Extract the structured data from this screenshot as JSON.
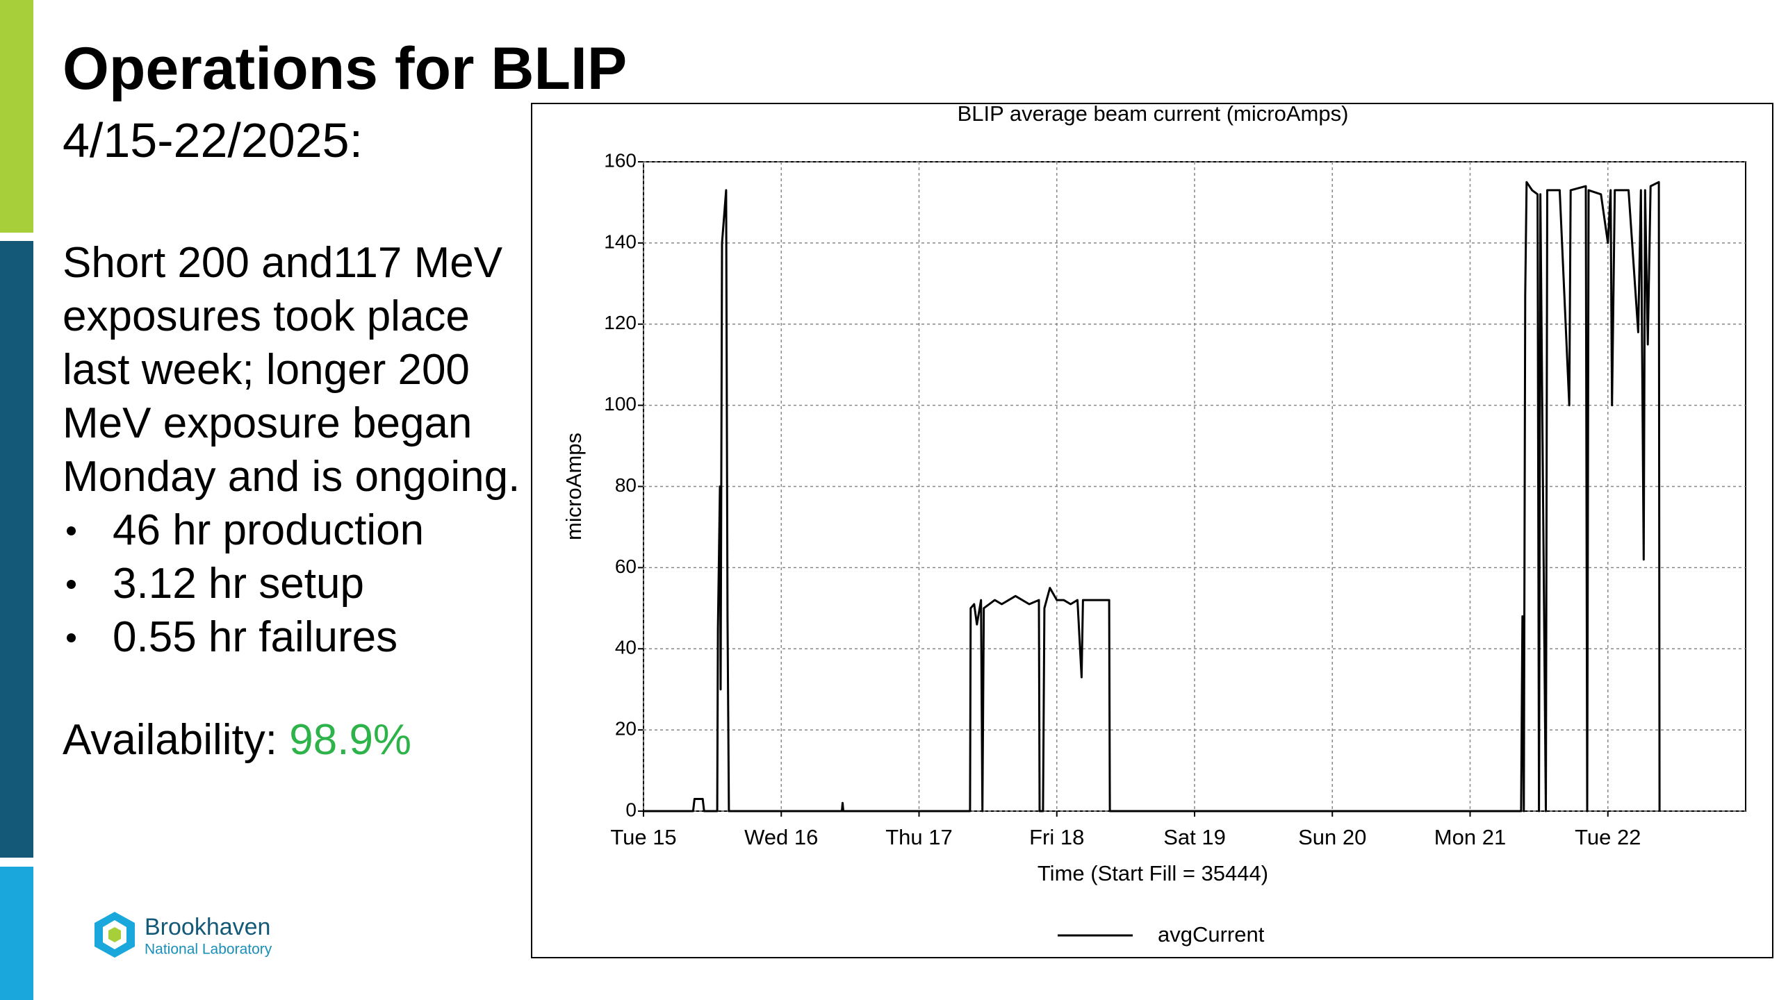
{
  "slide": {
    "title": "Operations for BLIP",
    "subtitle": "4/15-22/2025:",
    "paragraph": [
      "Short 200 and117 MeV",
      "exposures took place",
      "last week; longer 200",
      "MeV exposure began",
      "Monday and is ongoing."
    ],
    "bullets": [
      "46 hr production",
      "3.12 hr setup",
      "0.55 hr failures"
    ],
    "availability": {
      "label": "Availability:",
      "value": "98.9%"
    },
    "logo": {
      "name": "Brookhaven",
      "sub": "National Laboratory"
    }
  },
  "chart_data": {
    "type": "line",
    "title": "BLIP average beam current (microAmps)",
    "y_label": "microAmps",
    "x_label": "Time (Start Fill = 35444)",
    "xlim": [
      0,
      8
    ],
    "xticks": [
      {
        "value": 0,
        "label": "Tue 15"
      },
      {
        "value": 1,
        "label": "Wed 16"
      },
      {
        "value": 2,
        "label": "Thu 17"
      },
      {
        "value": 3,
        "label": "Fri 18"
      },
      {
        "value": 4,
        "label": "Sat 19"
      },
      {
        "value": 5,
        "label": "Sun 20"
      },
      {
        "value": 6,
        "label": "Mon 21"
      },
      {
        "value": 7,
        "label": "Tue 22"
      }
    ],
    "ylim": [
      0,
      160
    ],
    "yticks": [
      0,
      20,
      40,
      60,
      80,
      100,
      120,
      140,
      160
    ],
    "grid": true,
    "x": [
      0,
      0.36,
      0.37,
      0.43,
      0.44,
      0.535,
      0.54,
      0.555,
      0.56,
      0.57,
      0.6,
      0.61,
      0.62,
      1.44,
      1.445,
      1.45,
      2.37,
      2.375,
      2.4,
      2.42,
      2.45,
      2.46,
      2.47,
      2.55,
      2.6,
      2.7,
      2.8,
      2.87,
      2.875,
      2.9,
      2.91,
      2.95,
      3.0,
      3.05,
      3.1,
      3.15,
      3.18,
      3.19,
      3.25,
      3.35,
      3.38,
      3.385,
      6.37,
      6.38,
      6.39,
      6.4,
      6.41,
      6.45,
      6.49,
      6.5,
      6.51,
      6.55,
      6.56,
      6.65,
      6.72,
      6.73,
      6.84,
      6.85,
      6.86,
      6.95,
      7.0,
      7.02,
      7.03,
      7.05,
      7.15,
      7.22,
      7.24,
      7.26,
      7.27,
      7.29,
      7.31,
      7.37,
      7.375
    ],
    "series": [
      {
        "name": "avgCurrent",
        "color": "#000000",
        "values": [
          0,
          0,
          3,
          3,
          0,
          0,
          45,
          80,
          30,
          140,
          153,
          48,
          0,
          0,
          2,
          0,
          0,
          50,
          51,
          46,
          52,
          0,
          50,
          52,
          51,
          53,
          51,
          52,
          0,
          0,
          50,
          55,
          52,
          52,
          51,
          52,
          33,
          52,
          52,
          52,
          52,
          0,
          0,
          48,
          0,
          127,
          155,
          153,
          152,
          0,
          152,
          0,
          153,
          153,
          100,
          153,
          154,
          0,
          153,
          152,
          140,
          153,
          100,
          153,
          153,
          118,
          153,
          62,
          153,
          115,
          154,
          155,
          0
        ]
      }
    ]
  }
}
